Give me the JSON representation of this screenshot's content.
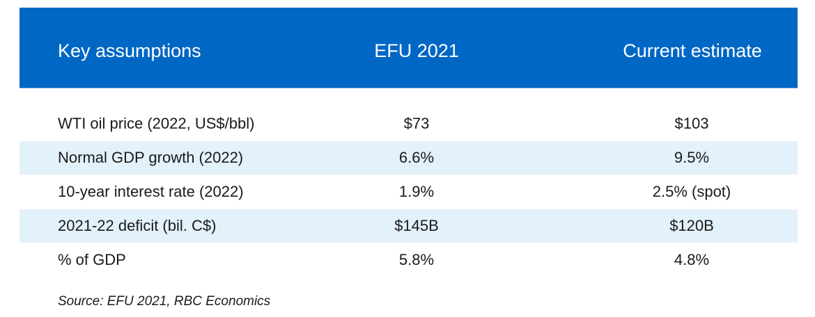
{
  "table": {
    "header": {
      "label": "Key assumptions",
      "efu": "EFU 2021",
      "current": "Current estimate"
    },
    "rows": [
      {
        "label": "WTI oil price (2022, US$/bbl)",
        "efu": "$73",
        "current": "$103",
        "shaded": false
      },
      {
        "label": "Normal GDP growth (2022)",
        "efu": "6.6%",
        "current": "9.5%",
        "shaded": true
      },
      {
        "label": "10-year interest rate (2022)",
        "efu": "1.9%",
        "current": "2.5% (spot)",
        "shaded": false
      },
      {
        "label": "2021-22 deficit (bil. C$)",
        "efu": "$145B",
        "current": "$120B",
        "shaded": true
      },
      {
        "label": "% of GDP",
        "efu": "5.8%",
        "current": "4.8%",
        "shaded": false
      }
    ]
  },
  "source": "Source: EFU 2021, RBC Economics",
  "colors": {
    "header_bg": "#0067c4",
    "row_shade": "#e3f1fb"
  }
}
